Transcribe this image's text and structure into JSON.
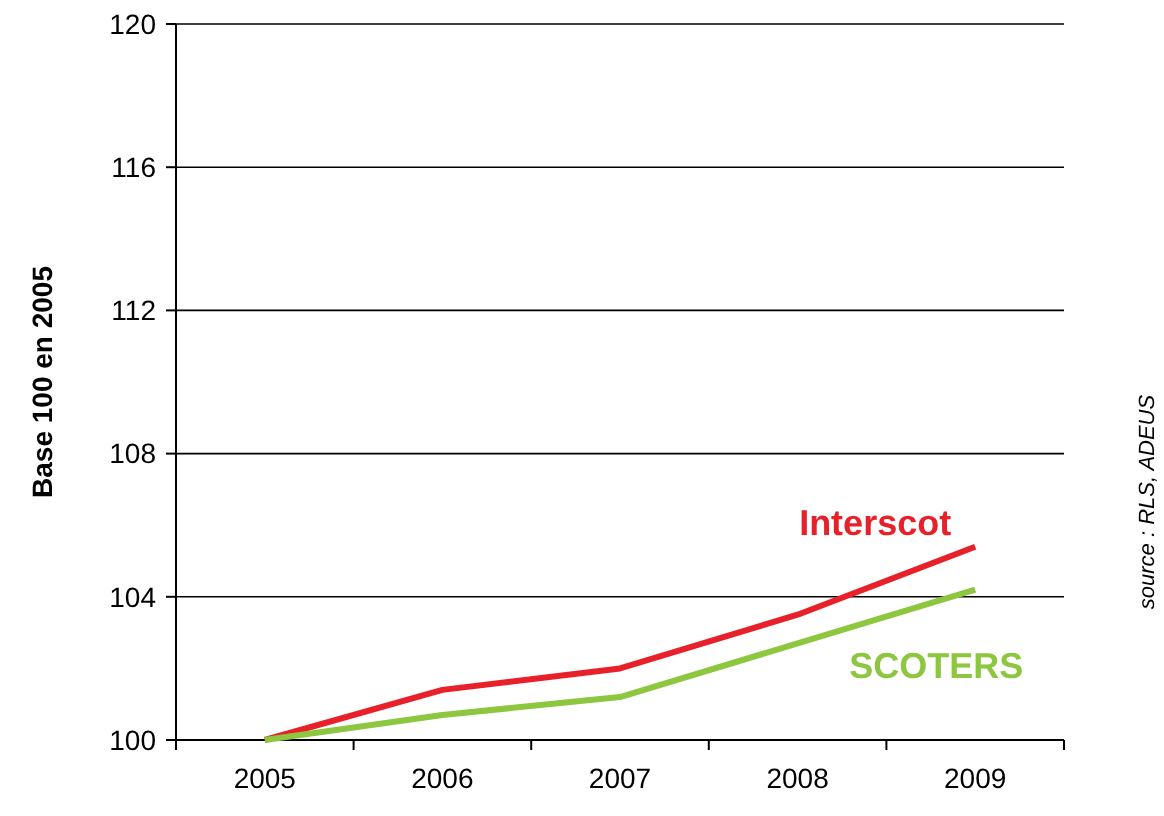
{
  "chart_data": {
    "type": "line",
    "ylabel": "Base 100 en 2005",
    "categories": [
      "2005",
      "2006",
      "2007",
      "2008",
      "2009"
    ],
    "series": [
      {
        "name": "Interscot",
        "color": "#e8202a",
        "values": [
          100,
          101.4,
          102,
          103.5,
          105.4
        ]
      },
      {
        "name": "SCOTERS",
        "color": "#8dc63f",
        "values": [
          100,
          100.7,
          101.2,
          102.7,
          104.2
        ]
      }
    ],
    "ylim": [
      100,
      120
    ],
    "yticks": [
      100,
      104,
      108,
      112,
      116,
      120
    ],
    "grid": "y",
    "marker": "none",
    "line_style": "solid",
    "annotations": [
      "source : RLS, ADEUS"
    ]
  }
}
